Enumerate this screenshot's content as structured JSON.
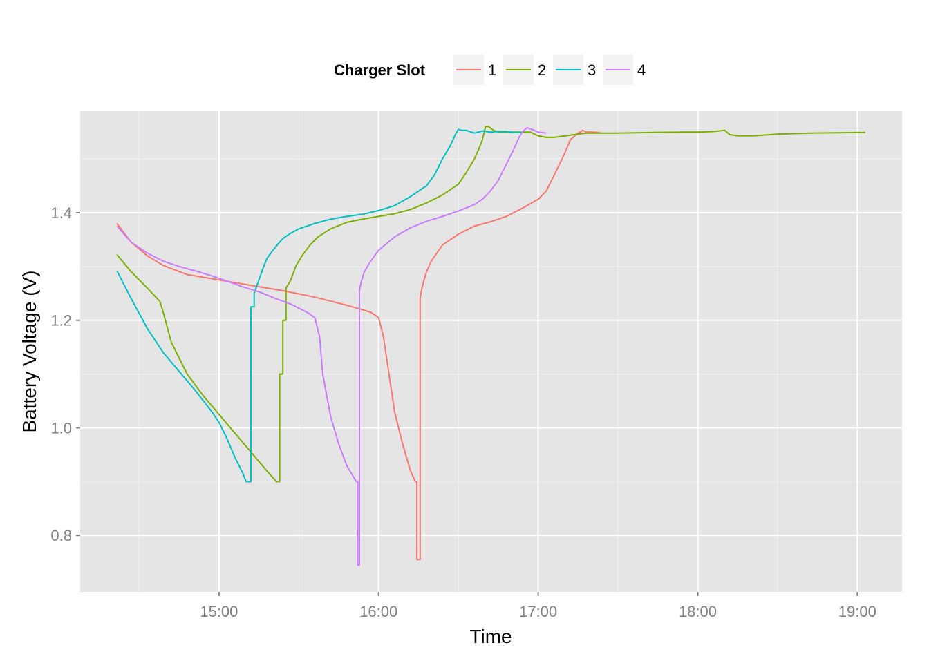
{
  "chart_data": {
    "type": "line",
    "title": "",
    "xlabel": "Time",
    "ylabel": "Battery Voltage (V)",
    "legend": {
      "title": "Charger Slot",
      "position": "top"
    },
    "x_unit": "hours (clock time)",
    "xlim": [
      14.13,
      19.28
    ],
    "ylim": [
      0.695,
      1.59
    ],
    "x_ticks": [
      {
        "value": 15,
        "label": "15:00"
      },
      {
        "value": 16,
        "label": "16:00"
      },
      {
        "value": 17,
        "label": "17:00"
      },
      {
        "value": 18,
        "label": "18:00"
      },
      {
        "value": 19,
        "label": "19:00"
      }
    ],
    "y_ticks": [
      {
        "value": 0.8,
        "label": "0.8"
      },
      {
        "value": 1.0,
        "label": "1.0"
      },
      {
        "value": 1.2,
        "label": "1.2"
      },
      {
        "value": 1.4,
        "label": "1.4"
      }
    ],
    "grid": true,
    "panel_color": "#e5e5e5",
    "grid_major_color": "#ffffff",
    "grid_minor_color": "#f2f2f2",
    "series": [
      {
        "name": "1",
        "color": "#f8766d",
        "x": [
          14.36,
          14.45,
          14.55,
          14.65,
          14.8,
          15.0,
          15.2,
          15.4,
          15.6,
          15.8,
          15.95,
          16.0,
          16.03,
          16.07,
          16.1,
          16.15,
          16.2,
          16.23,
          16.24,
          16.24,
          16.26,
          16.26,
          16.27,
          16.28,
          16.3,
          16.33,
          16.4,
          16.5,
          16.6,
          16.7,
          16.8,
          16.9,
          17.0,
          17.05,
          17.1,
          17.15,
          17.18,
          17.2,
          17.25,
          17.28,
          17.3,
          17.35,
          17.4
        ],
        "y": [
          1.38,
          1.345,
          1.32,
          1.302,
          1.285,
          1.275,
          1.265,
          1.255,
          1.243,
          1.228,
          1.215,
          1.205,
          1.17,
          1.09,
          1.03,
          0.97,
          0.92,
          0.9,
          0.9,
          0.755,
          0.755,
          1.24,
          1.258,
          1.27,
          1.29,
          1.31,
          1.34,
          1.36,
          1.375,
          1.383,
          1.393,
          1.408,
          1.425,
          1.44,
          1.47,
          1.5,
          1.52,
          1.535,
          1.548,
          1.553,
          1.55,
          1.55,
          1.548
        ]
      },
      {
        "name": "2",
        "color": "#7cae00",
        "x": [
          14.36,
          14.45,
          14.55,
          14.63,
          14.65,
          14.7,
          14.8,
          14.9,
          15.0,
          15.1,
          15.2,
          15.3,
          15.36,
          15.37,
          15.38,
          15.38,
          15.4,
          15.4,
          15.42,
          15.42,
          15.45,
          15.48,
          15.52,
          15.57,
          15.62,
          15.7,
          15.8,
          15.9,
          16.0,
          16.1,
          16.2,
          16.3,
          16.4,
          16.5,
          16.55,
          16.6,
          16.63,
          16.65,
          16.67,
          16.69,
          16.72,
          16.75,
          16.85,
          16.95,
          17.0,
          17.05,
          17.1,
          17.2,
          17.3,
          17.5,
          17.7,
          17.9,
          18.0,
          18.1,
          18.17,
          18.2,
          18.25,
          18.35,
          18.5,
          18.7,
          19.0,
          19.05
        ],
        "y": [
          1.322,
          1.29,
          1.26,
          1.235,
          1.215,
          1.16,
          1.1,
          1.06,
          1.025,
          0.99,
          0.955,
          0.92,
          0.9,
          0.9,
          0.9,
          1.1,
          1.1,
          1.2,
          1.2,
          1.26,
          1.275,
          1.3,
          1.32,
          1.34,
          1.355,
          1.37,
          1.382,
          1.388,
          1.393,
          1.398,
          1.406,
          1.418,
          1.433,
          1.453,
          1.475,
          1.5,
          1.52,
          1.535,
          1.56,
          1.56,
          1.553,
          1.55,
          1.55,
          1.55,
          1.543,
          1.54,
          1.54,
          1.544,
          1.548,
          1.548,
          1.549,
          1.55,
          1.55,
          1.551,
          1.553,
          1.545,
          1.543,
          1.543,
          1.546,
          1.548,
          1.549,
          1.549
        ]
      },
      {
        "name": "3",
        "color": "#00bfc4",
        "x": [
          14.36,
          14.45,
          14.55,
          14.65,
          14.75,
          14.85,
          14.95,
          15.0,
          15.05,
          15.1,
          15.15,
          15.17,
          15.19,
          15.19,
          15.2,
          15.2,
          15.22,
          15.22,
          15.25,
          15.28,
          15.3,
          15.35,
          15.4,
          15.45,
          15.5,
          15.6,
          15.7,
          15.8,
          15.9,
          16.0,
          16.1,
          16.2,
          16.3,
          16.35,
          16.4,
          16.45,
          16.48,
          16.5,
          16.52,
          16.55,
          16.6,
          16.65,
          16.7,
          16.75,
          16.8,
          16.85,
          16.9
        ],
        "y": [
          1.292,
          1.24,
          1.185,
          1.14,
          1.105,
          1.07,
          1.032,
          1.01,
          0.98,
          0.945,
          0.915,
          0.9,
          0.9,
          0.9,
          0.9,
          1.225,
          1.225,
          1.25,
          1.275,
          1.3,
          1.315,
          1.335,
          1.352,
          1.362,
          1.37,
          1.38,
          1.388,
          1.393,
          1.397,
          1.404,
          1.413,
          1.43,
          1.45,
          1.47,
          1.5,
          1.525,
          1.545,
          1.555,
          1.553,
          1.553,
          1.548,
          1.552,
          1.55,
          1.551,
          1.551,
          1.549,
          1.549
        ]
      },
      {
        "name": "4",
        "color": "#c77cff",
        "x": [
          14.36,
          14.45,
          14.55,
          14.65,
          14.75,
          14.85,
          14.95,
          15.05,
          15.15,
          15.25,
          15.35,
          15.45,
          15.55,
          15.6,
          15.63,
          15.65,
          15.7,
          15.75,
          15.8,
          15.85,
          15.86,
          15.87,
          15.87,
          15.88,
          15.88,
          15.89,
          15.91,
          15.95,
          16.0,
          16.1,
          16.2,
          16.3,
          16.4,
          16.5,
          16.6,
          16.65,
          16.7,
          16.75,
          16.8,
          16.85,
          16.88,
          16.9,
          16.93,
          16.96,
          17.0,
          17.05
        ],
        "y": [
          1.375,
          1.345,
          1.325,
          1.31,
          1.3,
          1.292,
          1.283,
          1.273,
          1.262,
          1.253,
          1.241,
          1.23,
          1.215,
          1.205,
          1.17,
          1.1,
          1.02,
          0.97,
          0.93,
          0.905,
          0.9,
          0.9,
          0.745,
          0.745,
          1.255,
          1.27,
          1.29,
          1.31,
          1.33,
          1.355,
          1.372,
          1.384,
          1.393,
          1.403,
          1.415,
          1.425,
          1.44,
          1.46,
          1.49,
          1.52,
          1.54,
          1.55,
          1.558,
          1.555,
          1.55,
          1.548
        ]
      }
    ]
  }
}
